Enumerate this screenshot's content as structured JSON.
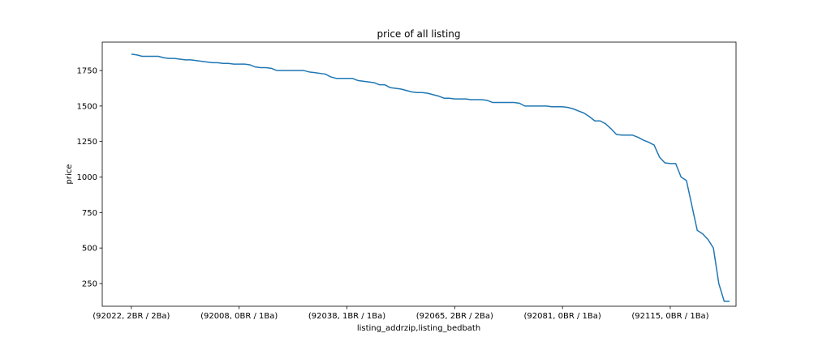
{
  "chart_data": {
    "type": "line",
    "title": "price of all listing",
    "xlabel": "listing_addrzip,listing_bedbath",
    "ylabel": "price",
    "ylim": [
      90,
      1950
    ],
    "yticks": [
      250,
      500,
      750,
      1000,
      1250,
      1500,
      1750
    ],
    "xtick_positions": [
      0,
      20,
      40,
      60,
      80,
      100
    ],
    "xtick_labels": [
      "(92022, 2BR / 2Ba)",
      "(92008, 0BR / 1Ba)",
      "(92038, 1BR / 1Ba)",
      "(92065, 2BR / 2Ba)",
      "(92081, 0BR / 1Ba)",
      "(92115, 0BR / 1Ba)"
    ],
    "xlim": [
      -5.4,
      112.2
    ],
    "grid": false,
    "series": [
      {
        "color": "#1f77b4",
        "values": [
          1865,
          1860,
          1850,
          1850,
          1850,
          1850,
          1840,
          1835,
          1835,
          1830,
          1825,
          1825,
          1820,
          1815,
          1810,
          1805,
          1805,
          1800,
          1800,
          1795,
          1795,
          1795,
          1790,
          1775,
          1770,
          1770,
          1765,
          1750,
          1750,
          1750,
          1750,
          1750,
          1750,
          1740,
          1735,
          1730,
          1725,
          1705,
          1695,
          1695,
          1695,
          1695,
          1680,
          1675,
          1670,
          1665,
          1650,
          1650,
          1630,
          1625,
          1620,
          1610,
          1600,
          1595,
          1595,
          1590,
          1580,
          1570,
          1555,
          1555,
          1550,
          1550,
          1550,
          1545,
          1545,
          1545,
          1540,
          1525,
          1525,
          1525,
          1525,
          1525,
          1520,
          1500,
          1500,
          1500,
          1500,
          1500,
          1495,
          1495,
          1495,
          1490,
          1480,
          1465,
          1450,
          1425,
          1395,
          1395,
          1375,
          1340,
          1300,
          1295,
          1295,
          1295,
          1280,
          1260,
          1245,
          1225,
          1140,
          1100,
          1095,
          1095,
          1000,
          975,
          800,
          625,
          600,
          560,
          500,
          250,
          125,
          125
        ]
      }
    ]
  }
}
